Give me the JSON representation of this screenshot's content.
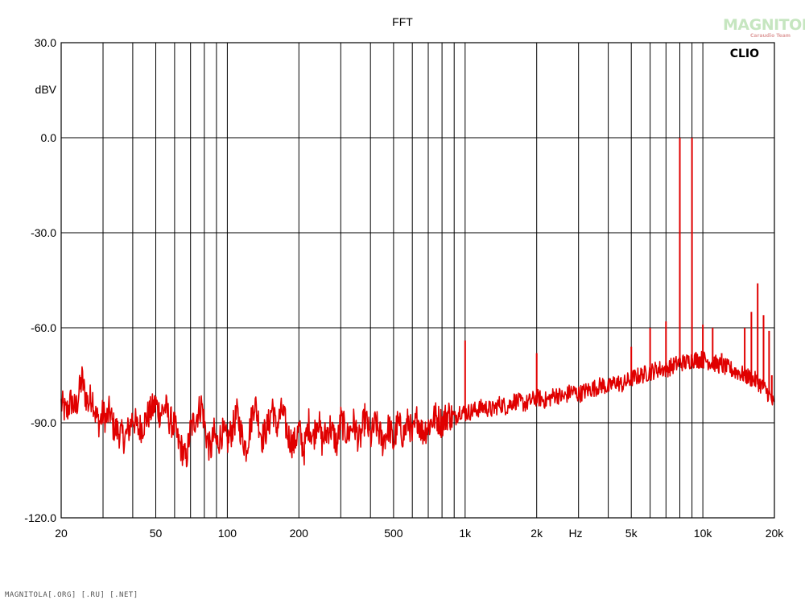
{
  "chart_data": {
    "type": "line",
    "title": "FFT",
    "ylabel": "dBV",
    "xlabel": "Hz",
    "x_scale": "log",
    "xlim": [
      20,
      20000
    ],
    "ylim": [
      -120,
      30
    ],
    "grid": true,
    "y_ticks": [
      {
        "value": 30,
        "label": "30.0"
      },
      {
        "value": 0,
        "label": "0.0"
      },
      {
        "value": -30,
        "label": "-30.0"
      },
      {
        "value": -60,
        "label": "-60.0"
      },
      {
        "value": -90,
        "label": "-90.0"
      },
      {
        "value": -120,
        "label": "-120.0"
      }
    ],
    "y_grid": [
      30,
      0,
      -30,
      -60,
      -90,
      -120
    ],
    "x_ticks": [
      {
        "value": 20,
        "label": "20"
      },
      {
        "value": 50,
        "label": "50"
      },
      {
        "value": 100,
        "label": "100"
      },
      {
        "value": 200,
        "label": "200"
      },
      {
        "value": 500,
        "label": "500"
      },
      {
        "value": 1000,
        "label": "1k"
      },
      {
        "value": 2000,
        "label": "2k"
      },
      {
        "value": 5000,
        "label": "5k"
      },
      {
        "value": 10000,
        "label": "10k"
      },
      {
        "value": 20000,
        "label": "20k"
      }
    ],
    "x_grid": [
      20,
      30,
      40,
      50,
      60,
      70,
      80,
      90,
      100,
      200,
      300,
      400,
      500,
      600,
      700,
      800,
      900,
      1000,
      2000,
      3000,
      4000,
      5000,
      6000,
      7000,
      8000,
      9000,
      10000,
      20000
    ],
    "series": [
      {
        "color": "#e00000",
        "points": [
          [
            20,
            -84
          ],
          [
            21,
            -87
          ],
          [
            22,
            -83
          ],
          [
            23,
            -86
          ],
          [
            24,
            -79
          ],
          [
            24.5,
            -76
          ],
          [
            25,
            -80
          ],
          [
            26,
            -84
          ],
          [
            27,
            -81
          ],
          [
            28,
            -88
          ],
          [
            29,
            -90
          ],
          [
            30,
            -87
          ],
          [
            31,
            -89
          ],
          [
            32,
            -86
          ],
          [
            33,
            -91
          ],
          [
            35,
            -93
          ],
          [
            37,
            -95
          ],
          [
            39,
            -91
          ],
          [
            40,
            -88
          ],
          [
            42,
            -92
          ],
          [
            44,
            -91
          ],
          [
            46,
            -88
          ],
          [
            48,
            -86
          ],
          [
            50,
            -84
          ],
          [
            52,
            -87
          ],
          [
            55,
            -85
          ],
          [
            57,
            -89
          ],
          [
            60,
            -91
          ],
          [
            62,
            -96
          ],
          [
            65,
            -99
          ],
          [
            67,
            -102
          ],
          [
            70,
            -92
          ],
          [
            72,
            -90
          ],
          [
            75,
            -87
          ],
          [
            78,
            -84
          ],
          [
            80,
            -90
          ],
          [
            82,
            -95
          ],
          [
            85,
            -99
          ],
          [
            88,
            -93
          ],
          [
            90,
            -97
          ],
          [
            95,
            -93
          ],
          [
            100,
            -96
          ],
          [
            105,
            -92
          ],
          [
            110,
            -87
          ],
          [
            115,
            -94
          ],
          [
            120,
            -98
          ],
          [
            125,
            -91
          ],
          [
            130,
            -83
          ],
          [
            135,
            -89
          ],
          [
            140,
            -95
          ],
          [
            150,
            -90
          ],
          [
            155,
            -84
          ],
          [
            160,
            -92
          ],
          [
            170,
            -86
          ],
          [
            180,
            -94
          ],
          [
            190,
            -97
          ],
          [
            200,
            -92
          ],
          [
            210,
            -99
          ],
          [
            220,
            -90
          ],
          [
            230,
            -95
          ],
          [
            240,
            -88
          ],
          [
            250,
            -96
          ],
          [
            270,
            -91
          ],
          [
            290,
            -97
          ],
          [
            300,
            -89
          ],
          [
            320,
            -94
          ],
          [
            340,
            -90
          ],
          [
            360,
            -96
          ],
          [
            380,
            -88
          ],
          [
            400,
            -95
          ],
          [
            420,
            -90
          ],
          [
            450,
            -96
          ],
          [
            480,
            -91
          ],
          [
            500,
            -97
          ],
          [
            520,
            -90
          ],
          [
            550,
            -94
          ],
          [
            580,
            -89
          ],
          [
            600,
            -95
          ],
          [
            630,
            -88
          ],
          [
            660,
            -93
          ],
          [
            700,
            -91
          ],
          [
            750,
            -88
          ],
          [
            800,
            -90
          ],
          [
            850,
            -87
          ],
          [
            900,
            -89
          ],
          [
            950,
            -86
          ],
          [
            1000,
            -87
          ],
          [
            1100,
            -86
          ],
          [
            1200,
            -85
          ],
          [
            1300,
            -86
          ],
          [
            1400,
            -84
          ],
          [
            1500,
            -85
          ],
          [
            1600,
            -83
          ],
          [
            1800,
            -84
          ],
          [
            2000,
            -82
          ],
          [
            2200,
            -83
          ],
          [
            2400,
            -81
          ],
          [
            2600,
            -82
          ],
          [
            2800,
            -80
          ],
          [
            3000,
            -81
          ],
          [
            3200,
            -80
          ],
          [
            3500,
            -79
          ],
          [
            3800,
            -78
          ],
          [
            4000,
            -79
          ],
          [
            4300,
            -77
          ],
          [
            4600,
            -78
          ],
          [
            5000,
            -76
          ],
          [
            5500,
            -75
          ],
          [
            6000,
            -74
          ],
          [
            6500,
            -73
          ],
          [
            7000,
            -73
          ],
          [
            7500,
            -72
          ],
          [
            8000,
            -71
          ],
          [
            8500,
            -71
          ],
          [
            9000,
            -70
          ],
          [
            9500,
            -70
          ],
          [
            10000,
            -70
          ],
          [
            11000,
            -71
          ],
          [
            12000,
            -72
          ],
          [
            13000,
            -73
          ],
          [
            14000,
            -74
          ],
          [
            15000,
            -75
          ],
          [
            16000,
            -76
          ],
          [
            17000,
            -77
          ],
          [
            18000,
            -79
          ],
          [
            19000,
            -81
          ],
          [
            20000,
            -85
          ]
        ],
        "spikes": [
          [
            1000,
            -64
          ],
          [
            2000,
            -68
          ],
          [
            5000,
            -66
          ],
          [
            6000,
            -60
          ],
          [
            7000,
            -58
          ],
          [
            8000,
            0
          ],
          [
            9000,
            0
          ],
          [
            10000,
            -59
          ],
          [
            11000,
            -60
          ],
          [
            12000,
            -68
          ],
          [
            15000,
            -60
          ],
          [
            16000,
            -55
          ],
          [
            17000,
            -46
          ],
          [
            18000,
            -56
          ],
          [
            19000,
            -61
          ],
          [
            19500,
            -75
          ]
        ]
      }
    ]
  },
  "brand": {
    "clio": "CLIO",
    "logo_main": "MAGNITOLA",
    "logo_sub": "Caraudio Team"
  },
  "footer_text": "MAGNITOLA[.ORG] [.RU] [.NET]"
}
